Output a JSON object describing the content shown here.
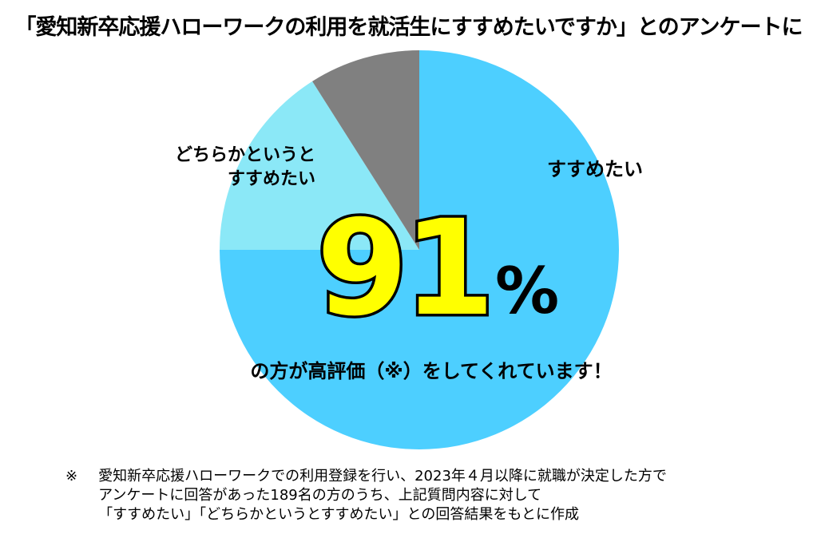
{
  "title": "「愛知新卒応援ハローワークの利用を就活生にすすめたいですか」とのアンケートに",
  "chart_data": {
    "type": "pie",
    "slices": [
      {
        "label": "すすめたい",
        "value": 75,
        "color": "#4dcfff"
      },
      {
        "label": "どちらかというとすすめたい",
        "label_lines": [
          "どちらかというと",
          "すすめたい"
        ],
        "value": 16,
        "color": "#8be8f7"
      },
      {
        "label": "",
        "value": 9,
        "color": "#808080"
      }
    ],
    "highlight": {
      "number": "91",
      "unit": "%",
      "number_color": "#ffff00"
    },
    "caption": "の方が高評価（※）をしてくれています！"
  },
  "footnote": {
    "mark": "※",
    "lines": [
      "愛知新卒応援ハローワークでの利用登録を行い、2023年４月以降に就職が決定した方で",
      "アンケートに回答があった189名の方のうち、上記質問内容に対して",
      "「すすめたい」「どちらかというとすすめたい」との回答結果をもとに作成"
    ]
  }
}
